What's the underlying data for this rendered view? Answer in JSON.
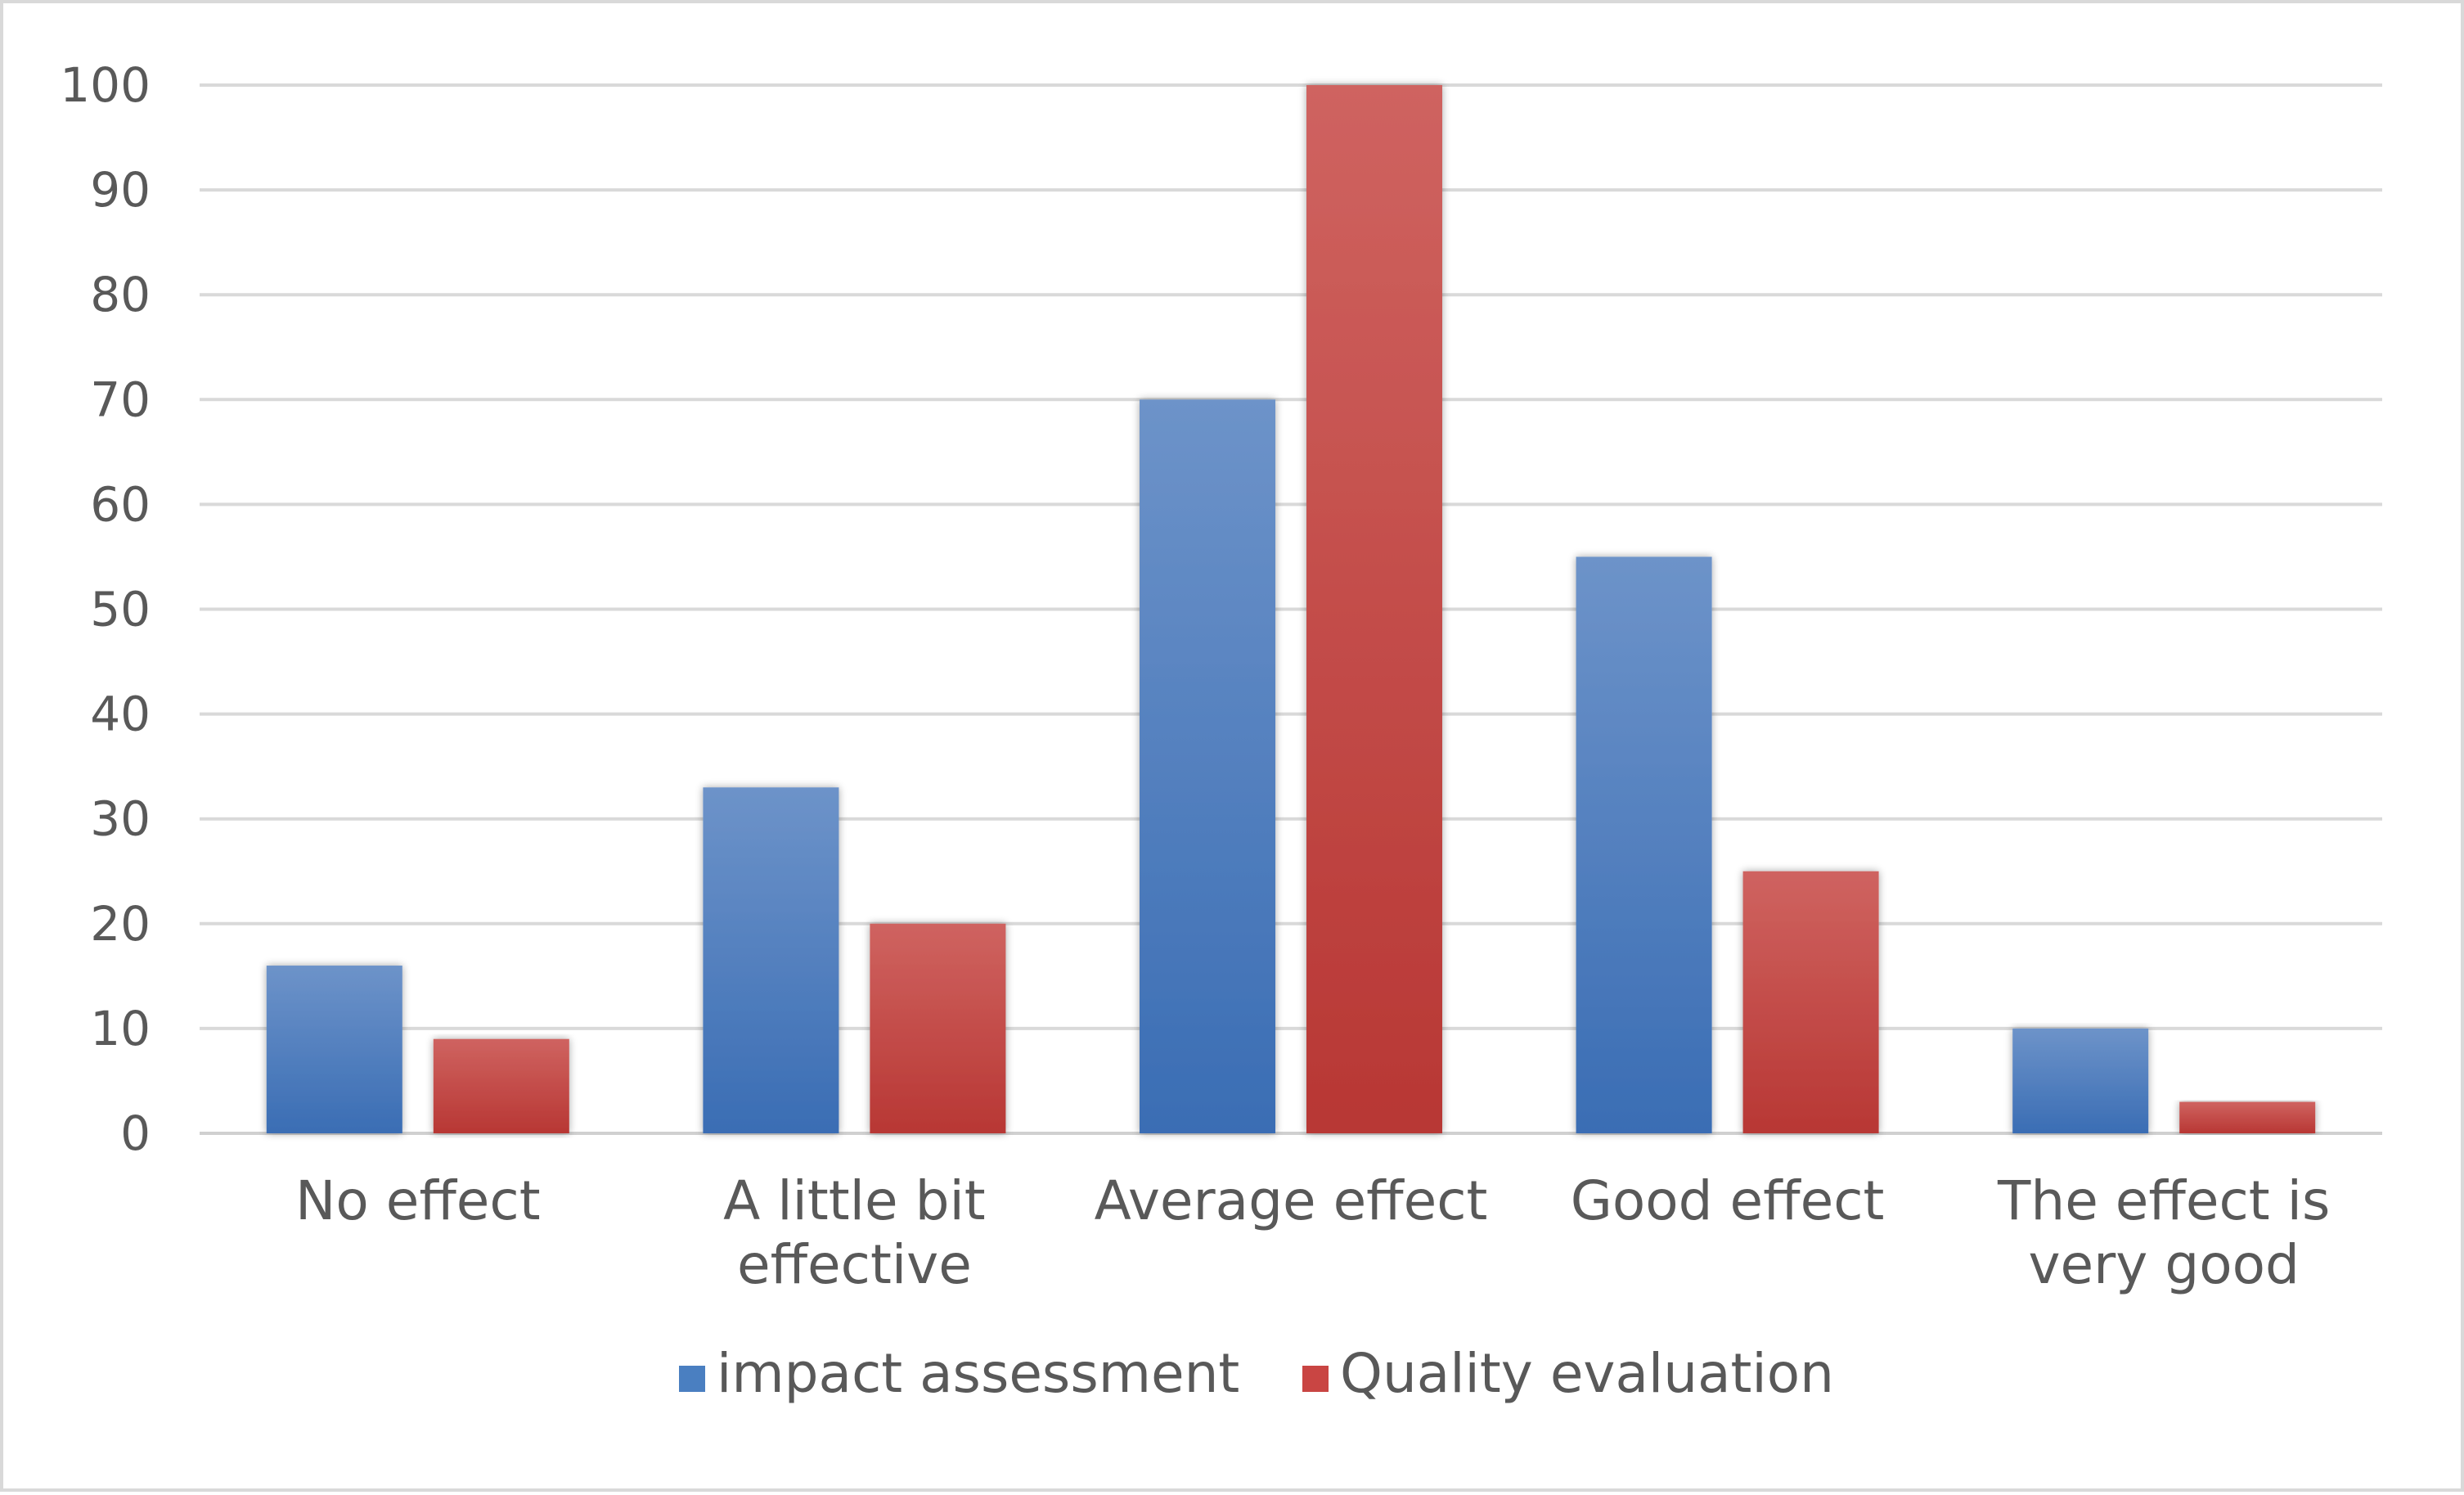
{
  "chart_data": {
    "type": "bar",
    "title": "",
    "xlabel": "",
    "ylabel": "",
    "categories": [
      [
        "No effect"
      ],
      [
        "A little bit",
        "effective"
      ],
      [
        "Average effect"
      ],
      [
        "Good effect"
      ],
      [
        "The effect is",
        "very good"
      ]
    ],
    "series": [
      {
        "name": "impact assessment",
        "values": [
          16,
          33,
          70,
          55,
          10
        ],
        "color": "#4a7fc1"
      },
      {
        "name": "Quality evaluation",
        "values": [
          9,
          20,
          100,
          25,
          3
        ],
        "color": "#c94543"
      }
    ],
    "ylim": [
      0,
      100
    ],
    "yticks": [
      0,
      10,
      20,
      30,
      40,
      50,
      60,
      70,
      80,
      90,
      100
    ],
    "grid": true,
    "legend_position": "bottom-center"
  }
}
